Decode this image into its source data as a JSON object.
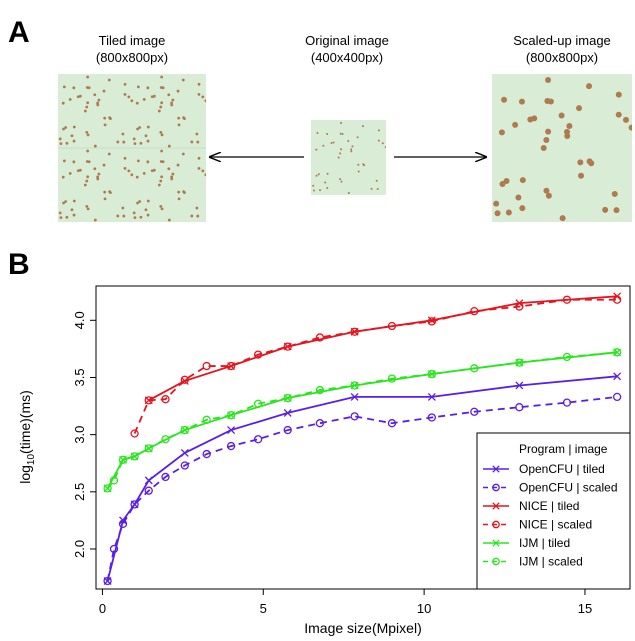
{
  "panel_a": {
    "letter": "A",
    "tiled": {
      "title": "Tiled image",
      "size": "(800x800px)"
    },
    "original": {
      "title": "Original image",
      "size": "(400x400px)"
    },
    "scaled": {
      "title": "Scaled-up image",
      "size": "(800x800px)"
    },
    "colors": {
      "background": "#d8ecd6",
      "dot": "#b07a4e"
    }
  },
  "panel_b": {
    "letter": "B"
  },
  "chart_data": {
    "type": "line",
    "title": "",
    "xlabel": "Image size(Mpixel)",
    "ylabel": "log10(time)(ms)",
    "ylabel_main": "log",
    "ylabel_sub": "10",
    "ylabel_rest": "(time)(ms)",
    "xlim": [
      -0.2,
      16.4
    ],
    "ylim": [
      1.65,
      4.3
    ],
    "xticks": [
      0,
      5,
      10,
      15
    ],
    "yticks": [
      2.0,
      2.5,
      3.0,
      3.5,
      4.0
    ],
    "ytick_labels": [
      "2.0",
      "2.5",
      "3.0",
      "3.5",
      "4.0"
    ],
    "grid": false,
    "legend": {
      "position": "bottom-right",
      "title": "Program | image"
    },
    "series": [
      {
        "name": "OpenCFU | tiled",
        "color": "#5a1ee6",
        "dash": "solid",
        "marker": "x",
        "x": [
          0.16,
          0.64,
          1.0,
          1.44,
          2.56,
          4.0,
          5.76,
          7.84,
          10.24,
          12.96,
          16.0
        ],
        "y": [
          1.72,
          2.25,
          2.39,
          2.6,
          2.84,
          3.04,
          3.19,
          3.33,
          3.33,
          3.43,
          3.51
        ]
      },
      {
        "name": "OpenCFU | scaled",
        "color": "#5a1ee6",
        "dash": "dashed",
        "marker": "o",
        "x": [
          0.16,
          0.36,
          0.64,
          1.0,
          1.44,
          1.96,
          2.56,
          3.24,
          4.0,
          4.84,
          5.76,
          6.76,
          7.84,
          9.0,
          10.24,
          11.56,
          12.96,
          14.44,
          16.0
        ],
        "y": [
          1.72,
          2.0,
          2.22,
          2.39,
          2.51,
          2.63,
          2.73,
          2.83,
          2.9,
          2.96,
          3.04,
          3.1,
          3.16,
          3.1,
          3.15,
          3.2,
          3.24,
          3.28,
          3.33
        ]
      },
      {
        "name": "NICE | tiled",
        "color": "#e6141e",
        "dash": "solid",
        "marker": "x",
        "x": [
          1.44,
          2.56,
          4.0,
          5.76,
          7.84,
          10.24,
          12.96,
          16.0
        ],
        "y": [
          3.3,
          3.47,
          3.6,
          3.77,
          3.9,
          4.0,
          4.15,
          4.21
        ]
      },
      {
        "name": "NICE | scaled",
        "color": "#e6141e",
        "dash": "dashed",
        "marker": "o",
        "x": [
          1.0,
          1.44,
          1.96,
          2.56,
          3.24,
          4.0,
          4.84,
          5.76,
          6.76,
          7.84,
          9.0,
          10.24,
          11.56,
          12.96,
          14.44,
          16.0
        ],
        "y": [
          3.01,
          3.3,
          3.31,
          3.48,
          3.6,
          3.6,
          3.7,
          3.77,
          3.85,
          3.9,
          3.95,
          3.99,
          4.08,
          4.12,
          4.18,
          4.18
        ]
      },
      {
        "name": "IJM | tiled",
        "color": "#2ae61e",
        "dash": "solid",
        "marker": "x",
        "x": [
          0.16,
          0.64,
          1.0,
          1.44,
          2.56,
          4.0,
          5.76,
          7.84,
          10.24,
          12.96,
          16.0
        ],
        "y": [
          2.53,
          2.78,
          2.81,
          2.88,
          3.04,
          3.17,
          3.32,
          3.43,
          3.53,
          3.63,
          3.72
        ]
      },
      {
        "name": "IJM | scaled",
        "color": "#2ae61e",
        "dash": "dashed",
        "marker": "o",
        "x": [
          0.16,
          0.36,
          0.64,
          1.0,
          1.44,
          1.96,
          2.56,
          3.24,
          4.0,
          4.84,
          5.76,
          6.76,
          7.84,
          9.0,
          10.24,
          11.56,
          12.96,
          14.44,
          16.0
        ],
        "y": [
          2.53,
          2.6,
          2.78,
          2.81,
          2.88,
          2.96,
          3.04,
          3.13,
          3.17,
          3.27,
          3.32,
          3.39,
          3.43,
          3.49,
          3.53,
          3.58,
          3.63,
          3.68,
          3.72
        ]
      }
    ]
  }
}
